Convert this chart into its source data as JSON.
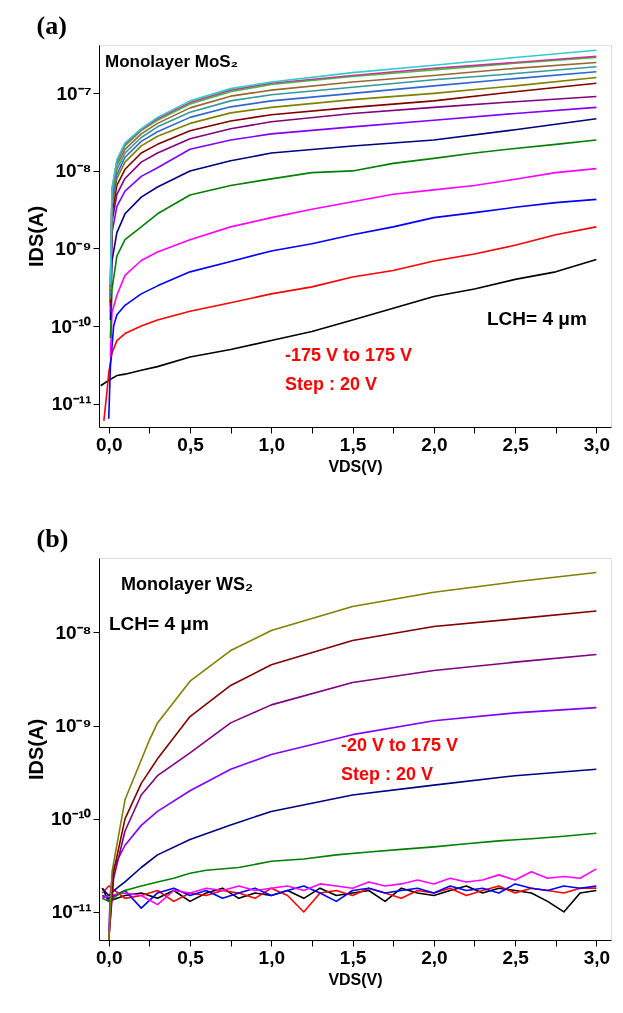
{
  "chart_data": [
    {
      "type": "line",
      "title": "(a)",
      "xlabel": "VDS(V)",
      "ylabel": "IDS(A)",
      "log": "y",
      "grid": false,
      "legend": false,
      "marker": "none",
      "line_style": "solid",
      "xlim": [
        -0.06,
        3.09
      ],
      "ylim": [
        5e-12,
        4.2e-07
      ],
      "xticks": [
        {
          "value": 0,
          "label": "0,0"
        },
        {
          "value": 0.25,
          "label": null
        },
        {
          "value": 0.5,
          "label": "0,5"
        },
        {
          "value": 0.75,
          "label": null
        },
        {
          "value": 1,
          "label": "1,0"
        },
        {
          "value": 1.25,
          "label": null
        },
        {
          "value": 1.5,
          "label": "1,5"
        },
        {
          "value": 1.75,
          "label": null
        },
        {
          "value": 2,
          "label": "2,0"
        },
        {
          "value": 2.25,
          "label": null
        },
        {
          "value": 2.5,
          "label": "2,5"
        },
        {
          "value": 2.75,
          "label": null
        },
        {
          "value": 3,
          "label": "3,0"
        }
      ],
      "yticks": [
        {
          "value": 1e-11,
          "label": "10⁻¹¹"
        },
        {
          "value": 1e-10,
          "label": "10⁻¹⁰"
        },
        {
          "value": 1e-09,
          "label": "10⁻⁹"
        },
        {
          "value": 1e-08,
          "label": "10⁻⁸"
        },
        {
          "value": 1e-07,
          "label": "10⁻⁷"
        }
      ],
      "annotations": [
        "Monolayer MoS₂",
        "LCH= 4 μm",
        "-175 V to 175 V",
        "Step : 20 V"
      ],
      "series": [
        {
          "color": "#000000",
          "x": [
            -0.05,
            0,
            0.05,
            0.1,
            0.2,
            0.3,
            0.5,
            0.75,
            1.0,
            1.25,
            1.5,
            1.75,
            2.0,
            2.25,
            2.5,
            2.75,
            3.0
          ],
          "values": [
            1.7e-11,
            2e-11,
            2.3e-11,
            2.4e-11,
            2.7e-11,
            3e-11,
            4e-11,
            5e-11,
            6.5e-11,
            8.5e-11,
            1.2e-10,
            1.7e-10,
            2.4e-10,
            3e-10,
            4e-10,
            5e-10,
            7.2e-10
          ]
        },
        {
          "color": "#ff0000",
          "x": [
            -0.03,
            -0.01,
            0,
            0.02,
            0.05,
            0.1,
            0.2,
            0.3,
            0.5,
            0.75,
            1.0,
            1.25,
            1.5,
            1.75,
            2.0,
            2.25,
            2.5,
            2.75,
            3.0
          ],
          "values": [
            6e-12,
            1.5e-11,
            2.5e-11,
            4.5e-11,
            6.5e-11,
            8e-11,
            1e-10,
            1.2e-10,
            1.55e-10,
            2e-10,
            2.6e-10,
            3.2e-10,
            4.3e-10,
            5.2e-10,
            6.9e-10,
            8.5e-10,
            1.1e-09,
            1.5e-09,
            1.9e-09
          ]
        },
        {
          "color": "#0000ff",
          "x": [
            0,
            0.01,
            0.03,
            0.05,
            0.1,
            0.2,
            0.3,
            0.5,
            0.75,
            1.0,
            1.25,
            1.5,
            1.75,
            2.0,
            2.25,
            2.5,
            2.75,
            3.0
          ],
          "values": [
            6.4e-12,
            3e-11,
            1e-10,
            1.4e-10,
            1.85e-10,
            2.6e-10,
            3.3e-10,
            5e-10,
            6.8e-10,
            9.3e-10,
            1.15e-09,
            1.5e-09,
            1.9e-09,
            2.5e-09,
            2.9e-09,
            3.4e-09,
            3.9e-09,
            4.3e-09
          ]
        },
        {
          "color": "#ff00ff",
          "x": [
            0.01,
            0.02,
            0.05,
            0.1,
            0.2,
            0.3,
            0.5,
            0.75,
            1.0,
            1.25,
            1.5,
            1.75,
            2.0,
            2.25,
            2.5,
            2.75,
            3.0
          ],
          "values": [
            4e-11,
            1.5e-10,
            2.5e-10,
            4.5e-10,
            7e-10,
            9e-10,
            1.3e-09,
            1.9e-09,
            2.5e-09,
            3.2e-09,
            4e-09,
            5e-09,
            5.7e-09,
            6.5e-09,
            7.8e-09,
            9.5e-09,
            1.07e-08
          ]
        },
        {
          "color": "#008000",
          "x": [
            0.01,
            0.02,
            0.05,
            0.1,
            0.2,
            0.3,
            0.5,
            0.75,
            1.0,
            1.25,
            1.5,
            1.75,
            2.0,
            2.25,
            2.5,
            2.75,
            3.0
          ],
          "values": [
            7e-11,
            3e-10,
            8e-10,
            1.3e-09,
            1.9e-09,
            2.8e-09,
            4.9e-09,
            6.5e-09,
            7.9e-09,
            9.5e-09,
            1e-08,
            1.25e-08,
            1.45e-08,
            1.7e-08,
            1.95e-08,
            2.2e-08,
            2.5e-08
          ]
        },
        {
          "color": "#000080",
          "x": [
            0.01,
            0.02,
            0.05,
            0.1,
            0.2,
            0.3,
            0.5,
            0.75,
            1.0,
            1.5,
            2.0,
            2.5,
            3.0
          ],
          "values": [
            1.2e-10,
            7e-10,
            1.6e-09,
            2.8e-09,
            4.6e-09,
            6.2e-09,
            1e-08,
            1.35e-08,
            1.7e-08,
            2.1e-08,
            2.5e-08,
            3.4e-08,
            4.7e-08
          ]
        },
        {
          "color": "#8000ff",
          "x": [
            0.01,
            0.02,
            0.05,
            0.1,
            0.2,
            0.3,
            0.5,
            0.75,
            1.0,
            1.5,
            2.0,
            2.5,
            3.0
          ],
          "values": [
            1.5e-10,
            1.6e-09,
            3.5e-09,
            5.5e-09,
            8.5e-09,
            1.1e-08,
            1.9e-08,
            2.5e-08,
            3e-08,
            3.7e-08,
            4.5e-08,
            5.5e-08,
            6.6e-08
          ]
        },
        {
          "color": "#800080",
          "x": [
            0.01,
            0.02,
            0.05,
            0.1,
            0.2,
            0.3,
            0.5,
            0.75,
            1.0,
            1.5,
            2.0,
            2.5,
            3.0
          ],
          "values": [
            1.8e-10,
            2.2e-09,
            5e-09,
            8e-09,
            1.3e-08,
            1.7e-08,
            2.6e-08,
            3.5e-08,
            4.3e-08,
            5.5e-08,
            6.6e-08,
            7.8e-08,
            9.1e-08
          ]
        },
        {
          "color": "#800000",
          "x": [
            0.01,
            0.02,
            0.05,
            0.1,
            0.2,
            0.3,
            0.5,
            0.75,
            1.0,
            1.5,
            2.0,
            2.5,
            3.0
          ],
          "values": [
            2e-10,
            2.8e-09,
            6.5e-09,
            1.05e-08,
            1.7e-08,
            2.2e-08,
            3.3e-08,
            4.4e-08,
            5.3e-08,
            6.6e-08,
            8e-08,
            1.05e-07,
            1.35e-07
          ]
        },
        {
          "color": "#808000",
          "x": [
            0.01,
            0.02,
            0.05,
            0.1,
            0.2,
            0.3,
            0.5,
            0.75,
            1.0,
            1.5,
            2.0,
            2.5,
            3.0
          ],
          "values": [
            2.2e-10,
            3.5e-09,
            8e-09,
            1.3e-08,
            2.1e-08,
            2.8e-08,
            4.1e-08,
            5.6e-08,
            6.6e-08,
            8.3e-08,
            1e-07,
            1.25e-07,
            1.6e-07
          ]
        },
        {
          "color": "#3366cc",
          "x": [
            0.01,
            0.02,
            0.05,
            0.1,
            0.2,
            0.3,
            0.5,
            0.75,
            1.0,
            1.5,
            2.0,
            2.5,
            3.0
          ],
          "values": [
            2.4e-10,
            4e-09,
            9e-09,
            1.5e-08,
            2.4e-08,
            3.2e-08,
            4.9e-08,
            6.7e-08,
            8e-08,
            1e-07,
            1.25e-07,
            1.55e-07,
            1.9e-07
          ]
        },
        {
          "color": "#339999",
          "x": [
            0.01,
            0.02,
            0.05,
            0.1,
            0.2,
            0.3,
            0.5,
            0.75,
            1.0,
            1.5,
            2.0,
            2.5,
            3.0
          ],
          "values": [
            2.6e-10,
            4.5e-09,
            1.05e-08,
            1.7e-08,
            2.7e-08,
            3.7e-08,
            5.7e-08,
            8e-08,
            9.6e-08,
            1.2e-07,
            1.5e-07,
            1.8e-07,
            2.2e-07
          ]
        },
        {
          "color": "#996633",
          "x": [
            0.01,
            0.02,
            0.05,
            0.1,
            0.2,
            0.3,
            0.5,
            0.75,
            1.0,
            1.5,
            2.0,
            2.5,
            3.0
          ],
          "values": [
            2.8e-10,
            5e-09,
            1.2e-08,
            1.9e-08,
            3e-08,
            4.1e-08,
            6.5e-08,
            9.2e-08,
            1.1e-07,
            1.4e-07,
            1.7e-07,
            2.1e-07,
            2.5e-07
          ]
        },
        {
          "color": "#33cc33",
          "x": [
            0.01,
            0.02,
            0.05,
            0.1,
            0.2,
            0.3,
            0.5,
            0.75,
            1.0,
            1.5,
            2.0,
            2.5,
            3.0
          ],
          "values": [
            3e-10,
            5.5e-09,
            1.3e-08,
            2.1e-08,
            3.3e-08,
            4.5e-08,
            7.3e-08,
            1.05e-07,
            1.3e-07,
            1.65e-07,
            2e-07,
            2.45e-07,
            2.9e-07
          ]
        },
        {
          "color": "#cc3399",
          "x": [
            0.01,
            0.02,
            0.05,
            0.1,
            0.2,
            0.3,
            0.5,
            0.75,
            1.0,
            1.5,
            2.0,
            2.5,
            3.0
          ],
          "values": [
            3.2e-10,
            5.8e-09,
            1.35e-08,
            2.2e-08,
            3.4e-08,
            4.7e-08,
            7.6e-08,
            1.1e-07,
            1.35e-07,
            1.7e-07,
            2.1e-07,
            2.5e-07,
            3e-07
          ]
        },
        {
          "color": "#33cccc",
          "x": [
            0.01,
            0.02,
            0.05,
            0.1,
            0.2,
            0.3,
            0.5,
            0.75,
            1.0,
            1.5,
            2.0,
            2.5,
            3.0
          ],
          "values": [
            3.4e-10,
            6e-09,
            1.4e-08,
            2.3e-08,
            3.5e-08,
            4.9e-08,
            8e-08,
            1.15e-07,
            1.4e-07,
            1.85e-07,
            2.3e-07,
            2.9e-07,
            3.6e-07
          ]
        }
      ]
    },
    {
      "type": "line",
      "title": "(b)",
      "xlabel": "VDS(V)",
      "ylabel": "IDS(A)",
      "log": "y",
      "grid": false,
      "legend": false,
      "marker": "none",
      "line_style": "solid",
      "xlim": [
        -0.06,
        3.09
      ],
      "ylim": [
        5e-12,
        6.3e-08
      ],
      "xticks": [
        {
          "value": 0,
          "label": "0,0"
        },
        {
          "value": 0.25,
          "label": null
        },
        {
          "value": 0.5,
          "label": "0,5"
        },
        {
          "value": 0.75,
          "label": null
        },
        {
          "value": 1,
          "label": "1,0"
        },
        {
          "value": 1.25,
          "label": null
        },
        {
          "value": 1.5,
          "label": "1,5"
        },
        {
          "value": 1.75,
          "label": null
        },
        {
          "value": 2,
          "label": "2,0"
        },
        {
          "value": 2.25,
          "label": null
        },
        {
          "value": 2.5,
          "label": "2,5"
        },
        {
          "value": 2.75,
          "label": null
        },
        {
          "value": 3,
          "label": "3,0"
        }
      ],
      "yticks": [
        {
          "value": 1e-11,
          "label": "10⁻¹¹"
        },
        {
          "value": 1e-10,
          "label": "10⁻¹⁰"
        },
        {
          "value": 1e-09,
          "label": "10⁻⁹"
        },
        {
          "value": 1e-08,
          "label": "10⁻⁸"
        }
      ],
      "annotations": [
        "Monolayer WS₂",
        "LCH= 4 μm",
        "-20 V to 175 V",
        "Step : 20 V"
      ],
      "series": [
        {
          "color": "#000000",
          "x": [
            -0.04,
            0,
            0.1,
            0.2,
            0.3,
            0.4,
            0.5,
            0.6,
            0.7,
            0.8,
            0.9,
            1.0,
            1.1,
            1.2,
            1.3,
            1.4,
            1.5,
            1.6,
            1.7,
            1.8,
            1.9,
            2.0,
            2.1,
            2.2,
            2.3,
            2.4,
            2.5,
            2.6,
            2.7,
            2.8,
            2.9,
            3.0
          ],
          "values": [
            1.8e-11,
            1.3e-11,
            1.5e-11,
            1.6e-11,
            1.4e-11,
            1.7e-11,
            1.3e-11,
            1.6e-11,
            1.8e-11,
            1.4e-11,
            1.6e-11,
            1.5e-11,
            1.7e-11,
            1.4e-11,
            1.8e-11,
            1.5e-11,
            1.6e-11,
            1.7e-11,
            1.3e-11,
            1.8e-11,
            1.6e-11,
            1.5e-11,
            1.7e-11,
            1.9e-11,
            1.6e-11,
            1.8e-11,
            1.7e-11,
            1.6e-11,
            1.3e-11,
            1e-11,
            1.6e-11,
            1.7e-11
          ]
        },
        {
          "color": "#ff0000",
          "x": [
            -0.04,
            0,
            0.1,
            0.2,
            0.3,
            0.4,
            0.5,
            0.6,
            0.7,
            0.8,
            0.9,
            1.0,
            1.1,
            1.2,
            1.3,
            1.4,
            1.5,
            1.6,
            1.7,
            1.8,
            1.9,
            2.0,
            2.1,
            2.2,
            2.3,
            2.4,
            2.5,
            2.6,
            2.7,
            2.8,
            2.9,
            3.0
          ],
          "values": [
            1.6e-11,
            1.9e-11,
            1.4e-11,
            1.5e-11,
            1.7e-11,
            1.3e-11,
            1.6e-11,
            1.5e-11,
            1.7e-11,
            1.6e-11,
            1.4e-11,
            1.8e-11,
            1.5e-11,
            1e-11,
            1.6e-11,
            1.7e-11,
            1.5e-11,
            1.8e-11,
            1.6e-11,
            1.4e-11,
            1.7e-11,
            1.6e-11,
            1.8e-11,
            1.5e-11,
            1.7e-11,
            1.9e-11,
            1.6e-11,
            1.8e-11,
            1.7e-11,
            1.6e-11,
            1.8e-11,
            1.8e-11
          ]
        },
        {
          "color": "#0000ff",
          "x": [
            -0.04,
            0,
            0.1,
            0.2,
            0.3,
            0.4,
            0.5,
            0.6,
            0.7,
            0.8,
            0.9,
            1.0,
            1.1,
            1.2,
            1.3,
            1.4,
            1.5,
            1.6,
            1.7,
            1.8,
            1.9,
            2.0,
            2.1,
            2.2,
            2.3,
            2.4,
            2.5,
            2.6,
            2.7,
            2.8,
            2.9,
            3.0
          ],
          "values": [
            1.5e-11,
            1.4e-11,
            1.7e-11,
            1.1e-11,
            1.6e-11,
            1.8e-11,
            1.5e-11,
            1.7e-11,
            1.4e-11,
            1.6e-11,
            1.8e-11,
            1.5e-11,
            1.7e-11,
            1.9e-11,
            1.6e-11,
            1.3e-11,
            1.7e-11,
            1.8e-11,
            1.6e-11,
            1.7e-11,
            1.8e-11,
            1.6e-11,
            1.9e-11,
            1.7e-11,
            1.8e-11,
            1.6e-11,
            2e-11,
            1.8e-11,
            1.7e-11,
            1.9e-11,
            1.8e-11,
            1.9e-11
          ]
        },
        {
          "color": "#ff00ff",
          "x": [
            -0.04,
            0,
            0.1,
            0.2,
            0.3,
            0.4,
            0.5,
            0.6,
            0.7,
            0.8,
            0.9,
            1.0,
            1.1,
            1.2,
            1.3,
            1.4,
            1.5,
            1.6,
            1.7,
            1.8,
            1.9,
            2.0,
            2.1,
            2.2,
            2.3,
            2.4,
            2.5,
            2.6,
            2.7,
            2.8,
            2.9,
            3.0
          ],
          "values": [
            1.4e-11,
            1.5e-11,
            1.6e-11,
            1.5e-11,
            1.2e-11,
            1.7e-11,
            1.6e-11,
            1.8e-11,
            1.7e-11,
            1.9e-11,
            1.7e-11,
            1.8e-11,
            1.9e-11,
            1.7e-11,
            2e-11,
            1.9e-11,
            1.8e-11,
            2.1e-11,
            1.9e-11,
            2e-11,
            2.2e-11,
            2e-11,
            2.3e-11,
            2.1e-11,
            2.2e-11,
            2.5e-11,
            2.2e-11,
            2.7e-11,
            2.3e-11,
            2.4e-11,
            2.3e-11,
            2.9e-11
          ]
        },
        {
          "color": "#008000",
          "x": [
            -0.04,
            0,
            0.05,
            0.1,
            0.2,
            0.3,
            0.4,
            0.5,
            0.6,
            0.8,
            1.0,
            1.2,
            1.4,
            1.6,
            1.8,
            2.0,
            2.2,
            2.4,
            2.6,
            2.8,
            3.0
          ],
          "values": [
            1.4e-11,
            1.3e-11,
            1.5e-11,
            1.7e-11,
            1.9e-11,
            2.1e-11,
            2.3e-11,
            2.6e-11,
            2.8e-11,
            3e-11,
            3.5e-11,
            3.7e-11,
            4.1e-11,
            4.4e-11,
            4.7e-11,
            5e-11,
            5.4e-11,
            5.8e-11,
            6.1e-11,
            6.5e-11,
            7e-11
          ]
        },
        {
          "color": "#000080",
          "x": [
            -0.04,
            0,
            0.05,
            0.1,
            0.2,
            0.3,
            0.5,
            0.75,
            1.0,
            1.5,
            2.0,
            2.5,
            3.0
          ],
          "values": [
            1.8e-11,
            1.5e-11,
            1.8e-11,
            2.1e-11,
            3e-11,
            4.1e-11,
            6e-11,
            8.6e-11,
            1.2e-10,
            1.8e-10,
            2.3e-10,
            2.9e-10,
            3.4e-10
          ]
        },
        {
          "color": "#8000ff",
          "x": [
            0,
            0.01,
            0.03,
            0.1,
            0.2,
            0.3,
            0.5,
            0.75,
            1.0,
            1.5,
            2.0,
            2.5,
            3.0
          ],
          "values": [
            6e-12,
            1.6e-11,
            3e-11,
            5.2e-11,
            8.5e-11,
            1.2e-10,
            2e-10,
            3.4e-10,
            4.9e-10,
            8e-10,
            1.13e-09,
            1.37e-09,
            1.56e-09
          ]
        },
        {
          "color": "#800080",
          "x": [
            0,
            0.03,
            0.1,
            0.2,
            0.3,
            0.5,
            0.75,
            1.0,
            1.5,
            2.0,
            2.5,
            3.0
          ],
          "values": [
            5e-12,
            2.3e-11,
            7.4e-11,
            1.8e-10,
            2.9e-10,
            5.1e-10,
            1.07e-09,
            1.67e-09,
            2.9e-09,
            3.9e-09,
            4.8e-09,
            5.8e-09
          ]
        },
        {
          "color": "#800000",
          "x": [
            0,
            0.03,
            0.1,
            0.2,
            0.3,
            0.5,
            0.75,
            1.0,
            1.5,
            2.0,
            2.5,
            3.0
          ],
          "values": [
            5e-12,
            2.7e-11,
            1e-10,
            2.4e-10,
            4.4e-10,
            1.25e-09,
            2.7e-09,
            4.5e-09,
            8.2e-09,
            1.16e-08,
            1.4e-08,
            1.7e-08
          ]
        },
        {
          "color": "#808000",
          "x": [
            0,
            0.02,
            0.1,
            0.25,
            0.3,
            0.5,
            0.75,
            1.0,
            1.5,
            2.0,
            2.5,
            3.0
          ],
          "values": [
            5e-12,
            2.7e-11,
            1.6e-10,
            7e-10,
            1.07e-09,
            3e-09,
            6.4e-09,
            1.05e-08,
            1.9e-08,
            2.7e-08,
            3.5e-08,
            4.4e-08
          ]
        }
      ]
    }
  ]
}
